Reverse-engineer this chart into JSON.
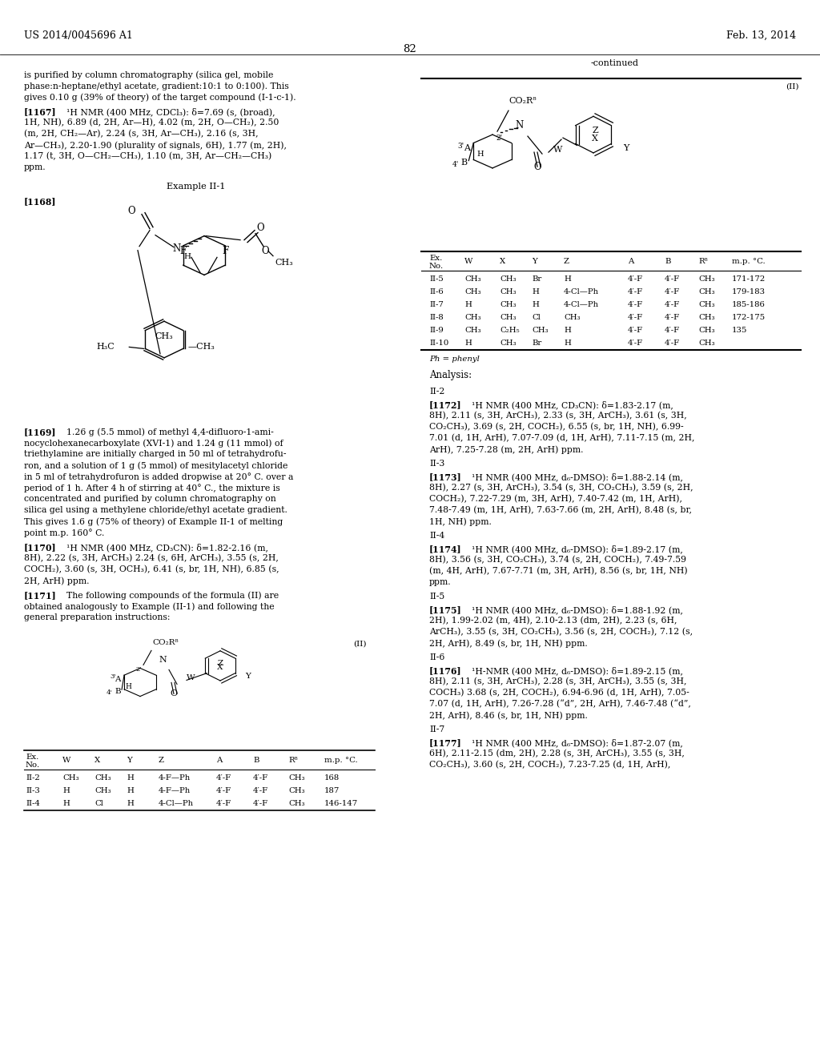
{
  "bg_color": "#ffffff",
  "header_left": "US 2014/0045696 A1",
  "header_right": "Feb. 13, 2014",
  "page_number": "82",
  "table1_rows_right": [
    [
      "II-5",
      "CH₃",
      "CH₃",
      "Br",
      "H",
      "4′-F",
      "4′-F",
      "CH₃",
      "171-172"
    ],
    [
      "II-6",
      "CH₃",
      "CH₃",
      "H",
      "4-Cl—Ph",
      "4′-F",
      "4′-F",
      "CH₃",
      "179-183"
    ],
    [
      "II-7",
      "H",
      "CH₃",
      "H",
      "4-Cl—Ph",
      "4′-F",
      "4′-F",
      "CH₃",
      "185-186"
    ],
    [
      "II-8",
      "CH₃",
      "CH₃",
      "Cl",
      "CH₃",
      "4′-F",
      "4′-F",
      "CH₃",
      "172-175"
    ],
    [
      "II-9",
      "CH₃",
      "C₂H₅",
      "CH₃",
      "H",
      "4′-F",
      "4′-F",
      "CH₃",
      "135"
    ],
    [
      "II-10",
      "H",
      "CH₃",
      "Br",
      "H",
      "4′-F",
      "4′-F",
      "CH₃",
      ""
    ]
  ],
  "table1_rows_left": [
    [
      "II-2",
      "CH₃",
      "CH₃",
      "H",
      "4-F—Ph",
      "4′-F",
      "4′-F",
      "CH₃",
      "168"
    ],
    [
      "II-3",
      "H",
      "CH₃",
      "H",
      "4-F—Ph",
      "4′-F",
      "4′-F",
      "CH₃",
      "187"
    ],
    [
      "II-4",
      "H",
      "Cl",
      "H",
      "4-Cl—Ph",
      "4′-F",
      "4′-F",
      "CH₃",
      "146-147"
    ]
  ]
}
